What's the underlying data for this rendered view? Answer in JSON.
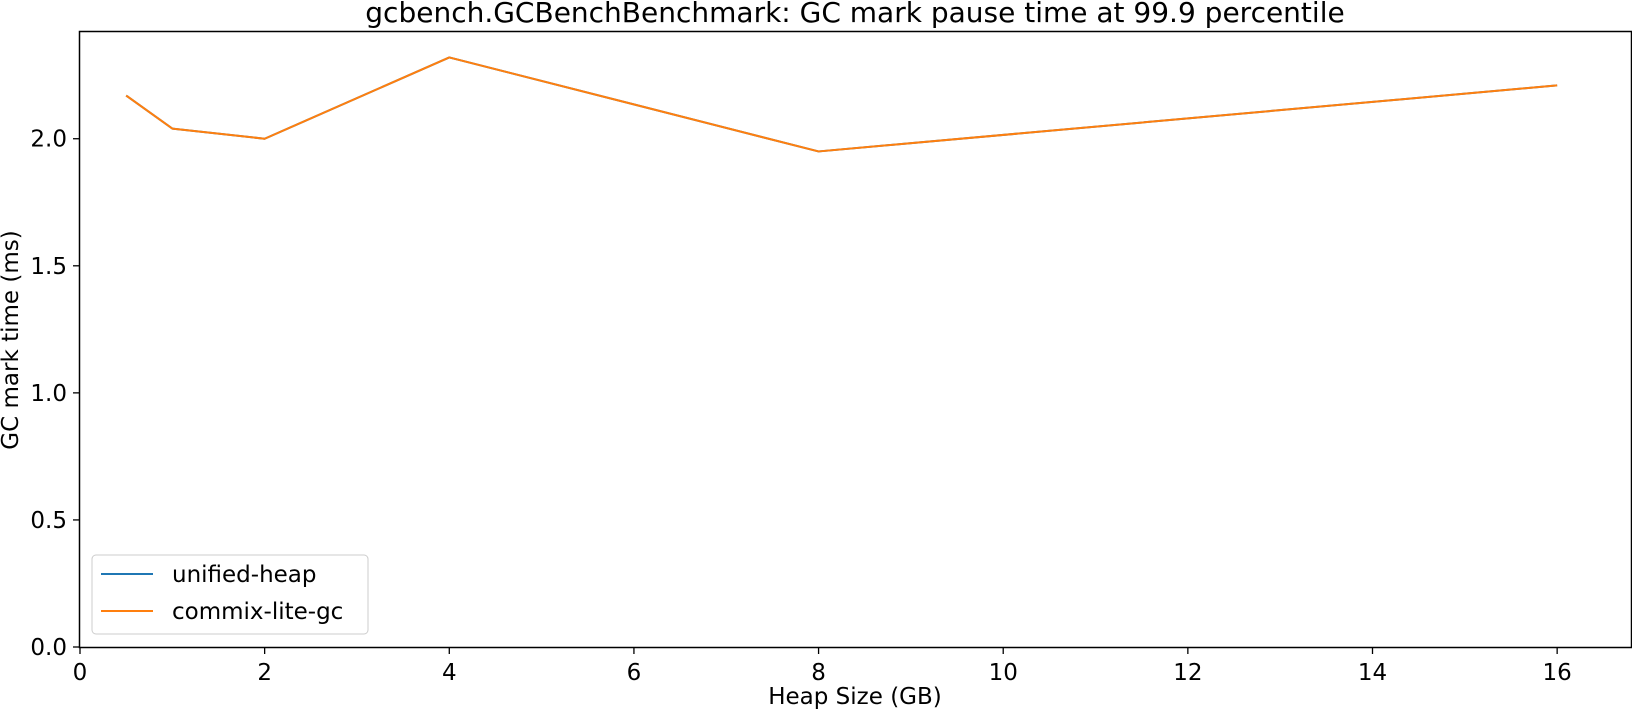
{
  "chart_data": {
    "type": "line",
    "title": "gcbench.GCBenchBenchmark: GC mark pause time at 99.9 percentile",
    "xlabel": "Heap Size (GB)",
    "ylabel": "GC mark time (ms)",
    "xlim": [
      0,
      16.8
    ],
    "ylim": [
      0,
      2.42
    ],
    "x_ticks": [
      0,
      2,
      4,
      6,
      8,
      10,
      12,
      14,
      16
    ],
    "y_ticks": [
      0.0,
      0.5,
      1.0,
      1.5,
      2.0
    ],
    "y_tick_labels": [
      "0.0",
      "0.5",
      "1.0",
      "1.5",
      "2.0"
    ],
    "grid": false,
    "legend_position": "lower-left",
    "x": [
      0.5,
      1,
      2,
      4,
      8,
      16
    ],
    "series": [
      {
        "name": "unified-heap",
        "color": "#1f77b4",
        "values": [
          2.17,
          2.04,
          2.0,
          2.32,
          1.95,
          2.21
        ]
      },
      {
        "name": "commix-lite-gc",
        "color": "#ff7f0e",
        "values": [
          2.17,
          2.04,
          2.0,
          2.32,
          1.95,
          2.21
        ]
      }
    ]
  }
}
